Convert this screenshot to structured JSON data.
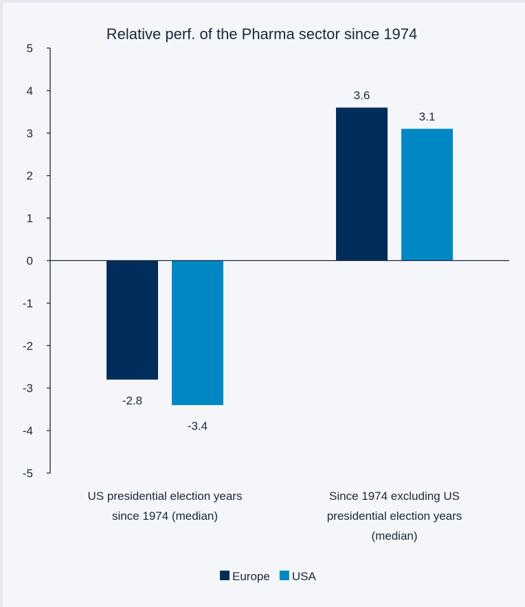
{
  "chart_data": {
    "type": "bar",
    "title": "Relative perf. of the Pharma sector since 1974",
    "categories": [
      "US presidential election years since 1974 (median)",
      "Since 1974 excluding US presidential election years (median)"
    ],
    "category_lines": [
      [
        "US presidential election years",
        "since 1974 (median)"
      ],
      [
        "Since 1974 excluding US",
        "presidential election years",
        "(median)"
      ]
    ],
    "series": [
      {
        "name": "Europe",
        "values": [
          -2.8,
          3.6
        ],
        "color": "#002d5a"
      },
      {
        "name": "USA",
        "values": [
          -3.4,
          3.1
        ],
        "color": "#0088c4"
      }
    ],
    "data_labels": [
      [
        "-2.8",
        "3.6"
      ],
      [
        "-3.4",
        "3.1"
      ]
    ],
    "yticks": [
      "5",
      "4",
      "3",
      "2",
      "1",
      "0",
      "-1",
      "-2",
      "-3",
      "-4",
      "-5"
    ],
    "ylim": [
      -5,
      5
    ],
    "xlabel": "",
    "ylabel": "",
    "grid": false,
    "legend_position": "bottom"
  }
}
